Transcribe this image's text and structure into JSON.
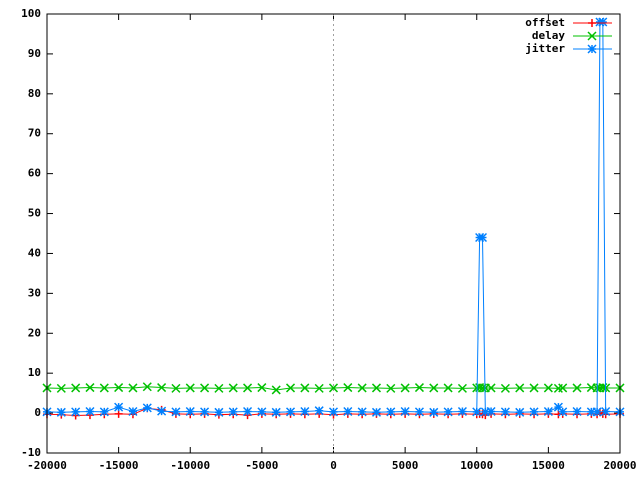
{
  "chart_data": {
    "type": "line",
    "x": [
      -20000,
      -19000,
      -18000,
      -17000,
      -16000,
      -15000,
      -14000,
      -13000,
      -12000,
      -11000,
      -10000,
      -9000,
      -8000,
      -7000,
      -6000,
      -5000,
      -4000,
      -3000,
      -2000,
      -1000,
      0,
      1000,
      2000,
      3000,
      4000,
      5000,
      6000,
      7000,
      8000,
      9000,
      10000,
      10200,
      10400,
      10600,
      11000,
      12000,
      13000,
      14000,
      15000,
      15700,
      16000,
      17000,
      18000,
      18400,
      18600,
      18800,
      19000,
      20000
    ],
    "series": [
      {
        "name": "offset",
        "color": "#ff0000",
        "marker": "plus",
        "values": [
          -0.3,
          -0.4,
          -0.6,
          -0.5,
          -0.3,
          -0.2,
          -0.3,
          1.2,
          0.8,
          -0.2,
          -0.3,
          -0.2,
          -0.4,
          -0.3,
          -0.5,
          -0.2,
          -0.3,
          -0.2,
          -0.3,
          -0.2,
          -0.4,
          -0.2,
          -0.3,
          -0.2,
          -0.3,
          -0.2,
          -0.3,
          -0.2,
          -0.3,
          -0.2,
          -0.3,
          -0.2,
          -0.3,
          -0.5,
          -0.2,
          -0.3,
          -0.2,
          -0.3,
          -0.2,
          -0.3,
          -0.2,
          -0.3,
          -0.2,
          -0.3,
          0.2,
          -0.2,
          -0.3,
          -0.2
        ]
      },
      {
        "name": "delay",
        "color": "#00c000",
        "marker": "cross",
        "values": [
          6.3,
          6.2,
          6.3,
          6.4,
          6.3,
          6.4,
          6.3,
          6.6,
          6.4,
          6.2,
          6.3,
          6.3,
          6.2,
          6.3,
          6.3,
          6.4,
          5.8,
          6.3,
          6.3,
          6.2,
          6.3,
          6.4,
          6.3,
          6.3,
          6.2,
          6.3,
          6.4,
          6.3,
          6.3,
          6.2,
          6.3,
          6.4,
          6.3,
          6.3,
          6.3,
          6.2,
          6.3,
          6.3,
          6.3,
          6.2,
          6.3,
          6.3,
          6.4,
          6.3,
          6.3,
          6.4,
          6.3,
          6.3
        ]
      },
      {
        "name": "jitter",
        "color": "#0080ff",
        "marker": "star",
        "values": [
          0.3,
          0.2,
          0.3,
          0.4,
          0.3,
          1.5,
          0.4,
          1.3,
          0.5,
          0.3,
          0.4,
          0.3,
          0.2,
          0.3,
          0.4,
          0.3,
          0.2,
          0.3,
          0.4,
          0.6,
          0.3,
          0.4,
          0.3,
          0.2,
          0.3,
          0.4,
          0.3,
          0.2,
          0.3,
          0.4,
          0.3,
          44,
          44,
          0.3,
          0.4,
          0.3,
          0.2,
          0.3,
          0.4,
          1.5,
          0.3,
          0.4,
          0.3,
          0.3,
          98,
          98,
          0.4,
          0.3
        ]
      }
    ],
    "xlim": [
      -20000,
      20000
    ],
    "ylim": [
      -10,
      100
    ],
    "xticks": [
      -20000,
      -15000,
      -10000,
      -5000,
      0,
      5000,
      10000,
      15000,
      20000
    ],
    "yticks": [
      -10,
      0,
      10,
      20,
      30,
      40,
      50,
      60,
      70,
      80,
      90,
      100
    ],
    "zero_line": true,
    "legend": "top-right"
  }
}
